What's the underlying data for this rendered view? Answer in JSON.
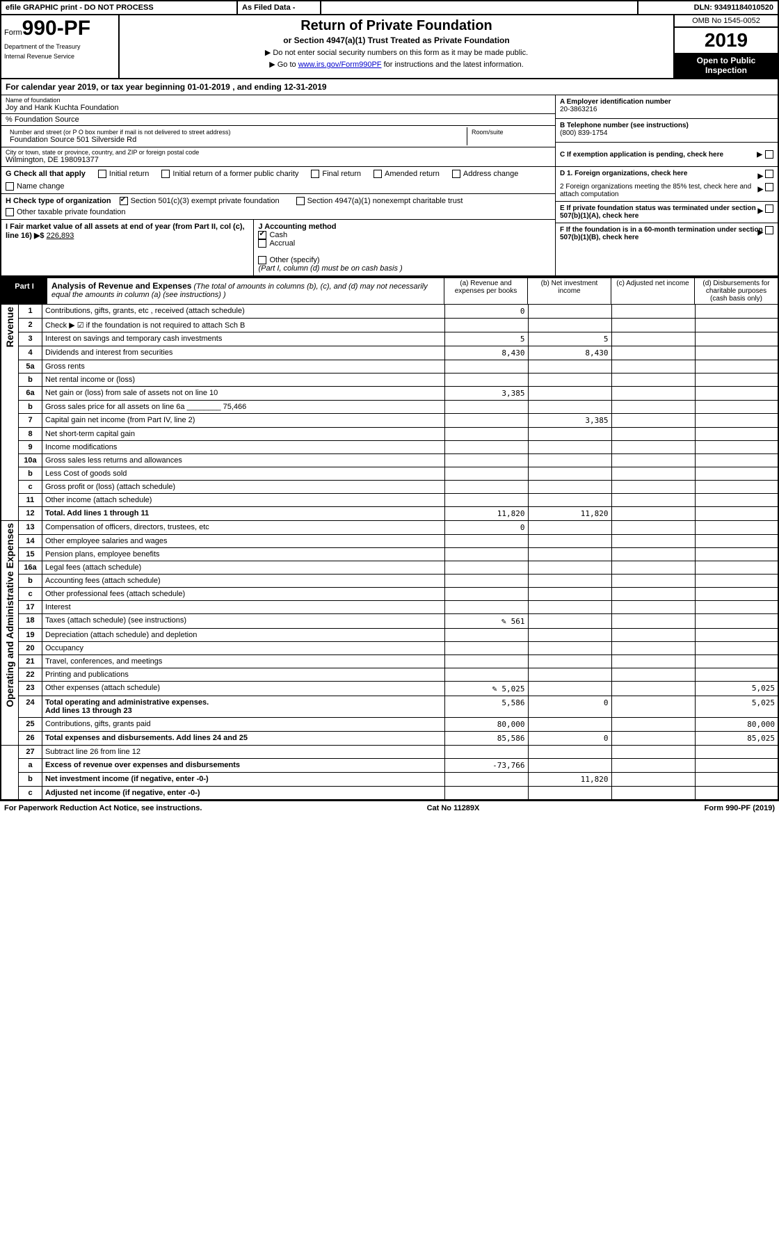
{
  "topbar": {
    "efile": "efile GRAPHIC print - DO NOT PROCESS",
    "asfiled": "As Filed Data -",
    "dln": "DLN: 93491184010520"
  },
  "header": {
    "form_prefix": "Form",
    "form_no": "990-PF",
    "dept1": "Department of the Treasury",
    "dept2": "Internal Revenue Service",
    "title": "Return of Private Foundation",
    "subtitle": "or Section 4947(a)(1) Trust Treated as Private Foundation",
    "instr1": "▶ Do not enter social security numbers on this form as it may be made public.",
    "instr2_pre": "▶ Go to ",
    "instr2_link": "www.irs.gov/Form990PF",
    "instr2_post": " for instructions and the latest information.",
    "omb": "OMB No 1545-0052",
    "year": "2019",
    "open": "Open to Public Inspection"
  },
  "calyear": {
    "text_a": "For calendar year 2019, or tax year beginning ",
    "begin": "01-01-2019",
    "text_b": " , and ending ",
    "end": "12-31-2019"
  },
  "name": {
    "lbl": "Name of foundation",
    "val": "Joy and Hank Kuchta Foundation",
    "care_lbl": "% Foundation Source",
    "street_lbl": "Number and street (or P O  box number if mail is not delivered to street address)",
    "street_val": "Foundation Source 501 Silverside Rd",
    "room_lbl": "Room/suite",
    "city_lbl": "City or town, state or province, country, and ZIP or foreign postal code",
    "city_val": "Wilmington, DE  198091377"
  },
  "right": {
    "a_lbl": "A Employer identification number",
    "a_val": "20-3863216",
    "b_lbl": "B Telephone number (see instructions)",
    "b_val": "(800) 839-1754",
    "c_lbl": "C If exemption application is pending, check here",
    "d1": "D 1. Foreign organizations, check here",
    "d2": "2 Foreign organizations meeting the 85% test, check here and attach computation",
    "e_lbl": "E  If private foundation status was terminated under section 507(b)(1)(A), check here",
    "f_lbl": "F  If the foundation is in a 60-month termination under section 507(b)(1)(B), check here"
  },
  "g": {
    "lbl": "G Check all that apply",
    "opts": [
      "Initial return",
      "Initial return of a former public charity",
      "Final return",
      "Amended return",
      "Address change",
      "Name change"
    ]
  },
  "h": {
    "lbl": "H Check type of organization",
    "opt1": "Section 501(c)(3) exempt private foundation",
    "opt2": "Section 4947(a)(1) nonexempt charitable trust",
    "opt3": "Other taxable private foundation"
  },
  "i": {
    "lbl": "I Fair market value of all assets at end of year (from Part II, col  (c), line 16)",
    "arrow": "▶$",
    "val": "226,893"
  },
  "j": {
    "lbl": "J Accounting method",
    "cash": "Cash",
    "accrual": "Accrual",
    "other": "Other (specify)",
    "note": "(Part I, column (d) must be on cash basis )"
  },
  "part1": {
    "lbl": "Part I",
    "title": "Analysis of Revenue and Expenses",
    "note": "(The total of amounts in columns (b), (c), and (d) may not necessarily equal the amounts in column (a) (see instructions) )",
    "col_a": "(a) Revenue and expenses per books",
    "col_b": "(b) Net investment income",
    "col_c": "(c) Adjusted net income",
    "col_d": "(d) Disbursements for charitable purposes (cash basis only)"
  },
  "rows": {
    "r1": {
      "n": "1",
      "d": "Contributions, gifts, grants, etc , received (attach schedule)",
      "a": "0"
    },
    "r2": {
      "n": "2",
      "d": "Check ▶ ☑ if the foundation is not required to attach Sch  B"
    },
    "r3": {
      "n": "3",
      "d": "Interest on savings and temporary cash investments",
      "a": "5",
      "b": "5"
    },
    "r4": {
      "n": "4",
      "d": "Dividends and interest from securities",
      "a": "8,430",
      "b": "8,430"
    },
    "r5a": {
      "n": "5a",
      "d": "Gross rents"
    },
    "r5b": {
      "n": "b",
      "d": "Net rental income or (loss)"
    },
    "r6a": {
      "n": "6a",
      "d": "Net gain or (loss) from sale of assets not on line 10",
      "a": "3,385"
    },
    "r6b": {
      "n": "b",
      "d": "Gross sales price for all assets on line 6a",
      "inline": "75,466"
    },
    "r7": {
      "n": "7",
      "d": "Capital gain net income (from Part IV, line 2)",
      "b": "3,385"
    },
    "r8": {
      "n": "8",
      "d": "Net short-term capital gain"
    },
    "r9": {
      "n": "9",
      "d": "Income modifications"
    },
    "r10a": {
      "n": "10a",
      "d": "Gross sales less returns and allowances"
    },
    "r10b": {
      "n": "b",
      "d": "Less  Cost of goods sold"
    },
    "r10c": {
      "n": "c",
      "d": "Gross profit or (loss) (attach schedule)"
    },
    "r11": {
      "n": "11",
      "d": "Other income (attach schedule)"
    },
    "r12": {
      "n": "12",
      "d": "Total. Add lines 1 through 11",
      "a": "11,820",
      "b": "11,820",
      "bold": true
    },
    "r13": {
      "n": "13",
      "d": "Compensation of officers, directors, trustees, etc",
      "a": "0"
    },
    "r14": {
      "n": "14",
      "d": "Other employee salaries and wages"
    },
    "r15": {
      "n": "15",
      "d": "Pension plans, employee benefits"
    },
    "r16a": {
      "n": "16a",
      "d": "Legal fees (attach schedule)"
    },
    "r16b": {
      "n": "b",
      "d": "Accounting fees (attach schedule)"
    },
    "r16c": {
      "n": "c",
      "d": "Other professional fees (attach schedule)"
    },
    "r17": {
      "n": "17",
      "d": "Interest"
    },
    "r18": {
      "n": "18",
      "d": "Taxes (attach schedule) (see instructions)",
      "a": "561",
      "icon": true
    },
    "r19": {
      "n": "19",
      "d": "Depreciation (attach schedule) and depletion"
    },
    "r20": {
      "n": "20",
      "d": "Occupancy"
    },
    "r21": {
      "n": "21",
      "d": "Travel, conferences, and meetings"
    },
    "r22": {
      "n": "22",
      "d": "Printing and publications"
    },
    "r23": {
      "n": "23",
      "d": "Other expenses (attach schedule)",
      "a": "5,025",
      "dd": "5,025",
      "icon": true
    },
    "r24": {
      "n": "24",
      "d": "Total operating and administrative expenses.",
      "d2": "Add lines 13 through 23",
      "a": "5,586",
      "b": "0",
      "dd": "5,025",
      "bold": true
    },
    "r25": {
      "n": "25",
      "d": "Contributions, gifts, grants paid",
      "a": "80,000",
      "dd": "80,000"
    },
    "r26": {
      "n": "26",
      "d": "Total expenses and disbursements. Add lines 24 and 25",
      "a": "85,586",
      "b": "0",
      "dd": "85,025",
      "bold": true
    },
    "r27": {
      "n": "27",
      "d": "Subtract line 26 from line 12"
    },
    "r27a": {
      "n": "a",
      "d": "Excess of revenue over expenses and disbursements",
      "a": "-73,766",
      "bold": true
    },
    "r27b": {
      "n": "b",
      "d": "Net investment income (if negative, enter -0-)",
      "b": "11,820",
      "bold": true
    },
    "r27c": {
      "n": "c",
      "d": "Adjusted net income (if negative, enter -0-)",
      "bold": true
    }
  },
  "rotations": {
    "rev": "Revenue",
    "exp": "Operating and Administrative Expenses"
  },
  "footer": {
    "left": "For Paperwork Reduction Act Notice, see instructions.",
    "mid": "Cat  No  11289X",
    "right": "Form 990-PF (2019)"
  }
}
